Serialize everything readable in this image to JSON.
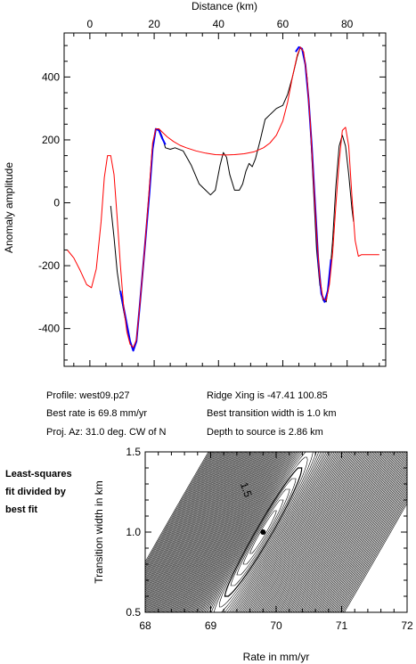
{
  "chart_data": [
    {
      "type": "line",
      "xlabel": "Distance (km)",
      "ylabel": "Anomaly amplitude",
      "xlim": [
        -8,
        92
      ],
      "ylim": [
        -520,
        540
      ],
      "x_ticks": [
        0,
        20,
        40,
        60,
        80
      ],
      "y_ticks": [
        -400,
        -200,
        0,
        200,
        400
      ],
      "x_axis_position": "top",
      "grid": false,
      "series": [
        {
          "color": "#000000",
          "points": [
            [
              6.5,
              -10
            ],
            [
              7.5,
              -110
            ],
            [
              8.5,
              -220
            ],
            [
              9.5,
              -290
            ],
            [
              11,
              -370
            ],
            [
              12.5,
              -440
            ],
            [
              13.5,
              -465
            ],
            [
              14.5,
              -440
            ],
            [
              15.5,
              -330
            ],
            [
              17,
              -150
            ],
            [
              18.5,
              30
            ],
            [
              19.5,
              170
            ],
            [
              20.5,
              235
            ],
            [
              21.5,
              235
            ],
            [
              22.5,
              210
            ],
            [
              23.5,
              175
            ],
            [
              25,
              170
            ],
            [
              26.5,
              175
            ],
            [
              29,
              165
            ],
            [
              31.5,
              120
            ],
            [
              34,
              60
            ],
            [
              36,
              40
            ],
            [
              37.5,
              25
            ],
            [
              39,
              40
            ],
            [
              40.5,
              120
            ],
            [
              41.5,
              160
            ],
            [
              42.5,
              145
            ],
            [
              43.5,
              90
            ],
            [
              45,
              40
            ],
            [
              46.5,
              40
            ],
            [
              47.5,
              60
            ],
            [
              48.5,
              100
            ],
            [
              49.5,
              125
            ],
            [
              50.5,
              115
            ],
            [
              51.5,
              140
            ],
            [
              53,
              200
            ],
            [
              54.5,
              265
            ],
            [
              56,
              280
            ],
            [
              58,
              300
            ],
            [
              60,
              310
            ],
            [
              61.5,
              345
            ],
            [
              63,
              400
            ],
            [
              64.5,
              465
            ],
            [
              65.5,
              495
            ],
            [
              66.5,
              475
            ],
            [
              67.5,
              400
            ],
            [
              68.5,
              250
            ],
            [
              69.5,
              50
            ],
            [
              70.5,
              -150
            ],
            [
              71.5,
              -260
            ],
            [
              72.5,
              -310
            ],
            [
              73.5,
              -315
            ],
            [
              74.5,
              -250
            ],
            [
              75.5,
              -120
            ],
            [
              76.5,
              50
            ],
            [
              77.5,
              180
            ],
            [
              78.5,
              215
            ],
            [
              79.5,
              180
            ],
            [
              80.5,
              90
            ],
            [
              81.5,
              -20
            ],
            [
              82,
              -60
            ]
          ]
        },
        {
          "color": "#0000ff",
          "points": [
            [
              9.5,
              -280
            ],
            [
              11,
              -360
            ],
            [
              12.5,
              -440
            ],
            [
              13.5,
              -470
            ],
            [
              14.5,
              -440
            ],
            [
              15.5,
              -330
            ],
            [
              17,
              -150
            ],
            [
              18.5,
              30
            ],
            [
              19.5,
              170
            ],
            [
              20.5,
              235
            ],
            [
              21.5,
              230
            ],
            [
              22.5,
              205
            ],
            [
              23.5,
              185
            ],
            [
              64,
              480
            ],
            [
              65,
              495
            ],
            [
              66,
              490
            ],
            [
              67,
              440
            ],
            [
              68,
              330
            ],
            [
              69,
              180
            ],
            [
              70,
              0
            ],
            [
              71,
              -180
            ],
            [
              72,
              -290
            ],
            [
              73,
              -315
            ],
            [
              74,
              -280
            ],
            [
              75,
              -180
            ]
          ]
        },
        {
          "color": "#ff0000",
          "points": [
            [
              -7,
              -150
            ],
            [
              -5,
              -175
            ],
            [
              -3,
              -215
            ],
            [
              -1,
              -260
            ],
            [
              0.5,
              -270
            ],
            [
              2,
              -210
            ],
            [
              3.5,
              -60
            ],
            [
              4.5,
              80
            ],
            [
              5.5,
              150
            ],
            [
              6.5,
              150
            ],
            [
              7.5,
              90
            ],
            [
              8.5,
              -50
            ],
            [
              9.5,
              -200
            ],
            [
              10.5,
              -330
            ],
            [
              11.5,
              -410
            ],
            [
              12.5,
              -450
            ],
            [
              13.5,
              -460
            ],
            [
              14.5,
              -435
            ],
            [
              15.5,
              -330
            ],
            [
              17,
              -150
            ],
            [
              18.5,
              50
            ],
            [
              19.5,
              190
            ],
            [
              20.5,
              235
            ],
            [
              21.5,
              235
            ],
            [
              22.5,
              225
            ],
            [
              24,
              210
            ],
            [
              26,
              195
            ],
            [
              28,
              183
            ],
            [
              30,
              175
            ],
            [
              33,
              165
            ],
            [
              36,
              158
            ],
            [
              39,
              153
            ],
            [
              42,
              152
            ],
            [
              45,
              153
            ],
            [
              48,
              156
            ],
            [
              51,
              162
            ],
            [
              54,
              175
            ],
            [
              56,
              190
            ],
            [
              58,
              215
            ],
            [
              60,
              260
            ],
            [
              61.5,
              320
            ],
            [
              63,
              400
            ],
            [
              64.5,
              470
            ],
            [
              65.5,
              495
            ],
            [
              66.5,
              480
            ],
            [
              67.5,
              400
            ],
            [
              68.5,
              260
            ],
            [
              69.5,
              80
            ],
            [
              70.5,
              -100
            ],
            [
              71.5,
              -240
            ],
            [
              72.5,
              -305
            ],
            [
              73.5,
              -310
            ],
            [
              74.5,
              -260
            ],
            [
              75.5,
              -160
            ],
            [
              76.5,
              -10
            ],
            [
              77.5,
              130
            ],
            [
              78.5,
              230
            ],
            [
              79.5,
              240
            ],
            [
              80.5,
              180
            ],
            [
              81.5,
              20
            ],
            [
              82.5,
              -120
            ],
            [
              83.5,
              -170
            ],
            [
              84.5,
              -165
            ],
            [
              86,
              -165
            ],
            [
              88,
              -165
            ],
            [
              90,
              -165
            ]
          ]
        }
      ]
    },
    {
      "type": "heatmap",
      "xlabel": "Rate in mm/yr",
      "ylabel": "Transition width in km",
      "xlim": [
        68,
        72
      ],
      "ylim": [
        0.5,
        1.5
      ],
      "x_ticks": [
        "68",
        "69",
        "70",
        "71",
        "72"
      ],
      "y_ticks": [
        "0.5",
        "1.0",
        "1.5"
      ],
      "contour_label": "1.5",
      "best_fit_point": [
        69.8,
        1.0
      ]
    }
  ],
  "info": {
    "profile": "Profile: west09.p27",
    "best_rate": "Best rate is 69.8 mm/yr",
    "proj_az": "Proj. Az: 31.0 deg. CW of N",
    "ridge_xing": "Ridge Xing is -47.41 100.85",
    "best_width": "Best transition width is 1.0 km",
    "depth": "Depth to source is   2.86 km"
  },
  "side_label": {
    "line1": "Least-squares",
    "line2": "fit divided by",
    "line3": "best fit"
  }
}
